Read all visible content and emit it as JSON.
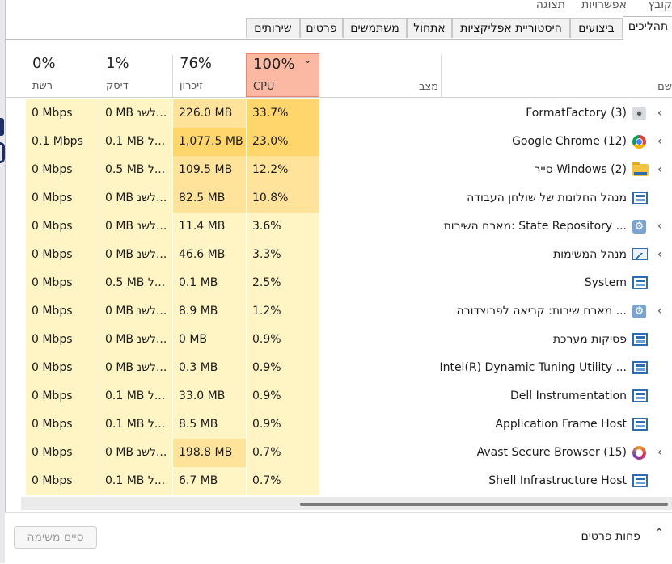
{
  "menu": {
    "file": "קובץ",
    "options": "אפשרויות",
    "view": "תצוגה"
  },
  "tabs": [
    "תהליכים",
    "ביצועים",
    "היסטוריית אפליקציות",
    "אתחול",
    "משתמשים",
    "פרטים",
    "שירותים"
  ],
  "columns": {
    "name": "שם",
    "status": "מצב",
    "cpu": {
      "pct": "100%",
      "label": "CPU"
    },
    "memory": {
      "pct": "76%",
      "label": "זיכרון"
    },
    "disk": {
      "pct": "1%",
      "label": "דיסק"
    },
    "network": {
      "pct": "0%",
      "label": "רשת"
    }
  },
  "processes": [
    {
      "name": "FormatFactory (3)",
      "icon": "formatfactory-icon",
      "expandable": true,
      "cpu": "33.7%",
      "memory": "226.0 MB",
      "disk": "0 MB לשנ...",
      "network": "0 Mbps"
    },
    {
      "name": "Google Chrome (12)",
      "icon": "chrome-icon",
      "expandable": true,
      "cpu": "23.0%",
      "memory": "1,077.5 MB",
      "disk": "0.1 MB ל...",
      "network": "0.1 Mbps"
    },
    {
      "name": "סייר Windows (2)",
      "icon": "folder-icon",
      "expandable": true,
      "cpu": "12.2%",
      "memory": "109.5 MB",
      "disk": "0.5 MB ל...",
      "network": "0 Mbps"
    },
    {
      "name": "מנהל החלונות של שולחן העבודה",
      "icon": "window-icon",
      "expandable": false,
      "cpu": "10.8%",
      "memory": "82.5 MB",
      "disk": "0 MB לשנ...",
      "network": "0 Mbps"
    },
    {
      "name": "מארח השירות: State Repository ...",
      "icon": "gear-icon",
      "expandable": true,
      "cpu": "3.6%",
      "memory": "11.4 MB",
      "disk": "0 MB לשנ...",
      "network": "0 Mbps"
    },
    {
      "name": "מנהל המשימות",
      "icon": "task-manager-icon",
      "expandable": true,
      "cpu": "3.3%",
      "memory": "46.6 MB",
      "disk": "0 MB לשנ...",
      "network": "0 Mbps"
    },
    {
      "name": "System",
      "icon": "window-icon",
      "expandable": false,
      "cpu": "2.5%",
      "memory": "0.1 MB",
      "disk": "0.5 MB ל...",
      "network": "0 Mbps"
    },
    {
      "name": "מארח שירות: קריאה לפרוצדורה ...",
      "icon": "gear-icon",
      "expandable": true,
      "cpu": "1.2%",
      "memory": "8.9 MB",
      "disk": "0 MB לשנ...",
      "network": "0 Mbps"
    },
    {
      "name": "פסיקות מערכת",
      "icon": "window-icon",
      "expandable": false,
      "cpu": "0.9%",
      "memory": "0 MB",
      "disk": "0 MB לשנ...",
      "network": "0 Mbps"
    },
    {
      "name": "Intel(R) Dynamic Tuning Utility ...",
      "icon": "window-icon",
      "expandable": false,
      "cpu": "0.9%",
      "memory": "0.3 MB",
      "disk": "0 MB לשנ...",
      "network": "0 Mbps"
    },
    {
      "name": "Dell Instrumentation",
      "icon": "window-icon",
      "expandable": false,
      "cpu": "0.9%",
      "memory": "33.0 MB",
      "disk": "0.1 MB ל...",
      "network": "0 Mbps"
    },
    {
      "name": "Application Frame Host",
      "icon": "window-icon",
      "expandable": false,
      "cpu": "0.9%",
      "memory": "8.5 MB",
      "disk": "0.1 MB ל...",
      "network": "0 Mbps"
    },
    {
      "name": "Avast Secure Browser (15)",
      "icon": "avast-icon",
      "expandable": true,
      "cpu": "0.7%",
      "memory": "198.8 MB",
      "disk": "0 MB לשנ...",
      "network": "0 Mbps"
    },
    {
      "name": "Shell Infrastructure Host",
      "icon": "window-icon",
      "expandable": false,
      "cpu": "0.7%",
      "memory": "6.7 MB",
      "disk": "0.1 MB ל...",
      "network": "0 Mbps"
    }
  ],
  "footer": {
    "fewer_details": "פחות פרטים",
    "end_task": "סיים משימה"
  },
  "colors": {
    "cpu_header": "#fbb9a3",
    "heat_high": "#ffd66b",
    "heat_mid": "#ffe39a",
    "heat_low": "#fff4c4"
  }
}
